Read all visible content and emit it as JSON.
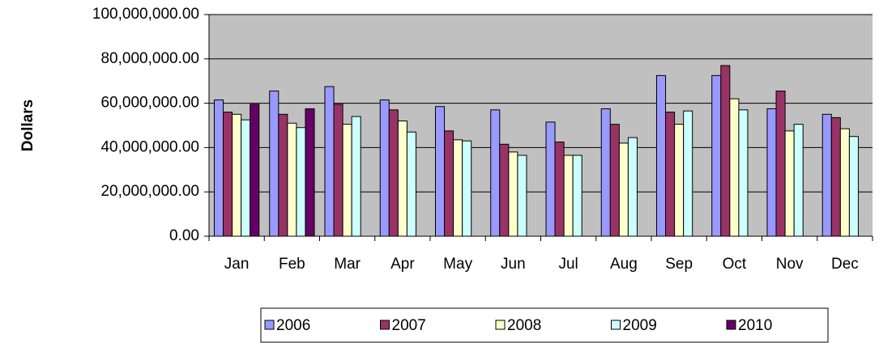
{
  "chart_data": {
    "type": "bar",
    "y_label": "Dollars",
    "categories": [
      "Jan",
      "Feb",
      "Mar",
      "Apr",
      "May",
      "Jun",
      "Jul",
      "Aug",
      "Sep",
      "Oct",
      "Nov",
      "Dec"
    ],
    "series": [
      {
        "name": "2006",
        "color": "#9999ff",
        "values": [
          61500000,
          65500000,
          67500000,
          61500000,
          58500000,
          57000000,
          51500000,
          57500000,
          72500000,
          72500000,
          57500000,
          55000000
        ]
      },
      {
        "name": "2007",
        "color": "#993366",
        "values": [
          56000000,
          55000000,
          59500000,
          57000000,
          47500000,
          41500000,
          42500000,
          50500000,
          56000000,
          77000000,
          65500000,
          53500000
        ]
      },
      {
        "name": "2008",
        "color": "#ffffcc",
        "values": [
          55000000,
          51000000,
          50500000,
          52000000,
          43500000,
          38000000,
          36500000,
          42000000,
          50500000,
          62000000,
          47500000,
          48500000
        ]
      },
      {
        "name": "2009",
        "color": "#ccffff",
        "values": [
          52500000,
          49000000,
          54000000,
          47000000,
          43000000,
          36500000,
          36500000,
          44500000,
          56500000,
          57000000,
          50500000,
          45000000
        ]
      },
      {
        "name": "2010",
        "color": "#660066",
        "values": [
          59500000,
          57500000,
          null,
          null,
          null,
          null,
          null,
          null,
          null,
          null,
          null,
          null
        ]
      }
    ],
    "ylim": [
      0,
      100000000
    ],
    "yticks": [
      {
        "value": 0,
        "label": "0.00"
      },
      {
        "value": 20000000,
        "label": "20,000,000.00"
      },
      {
        "value": 40000000,
        "label": "40,000,000.00"
      },
      {
        "value": 60000000,
        "label": "60,000,000.00"
      },
      {
        "value": 80000000,
        "label": "80,000,000.00"
      },
      {
        "value": 100000000,
        "label": "100,000,000.00"
      }
    ],
    "grid": true,
    "legend": "bottom"
  }
}
